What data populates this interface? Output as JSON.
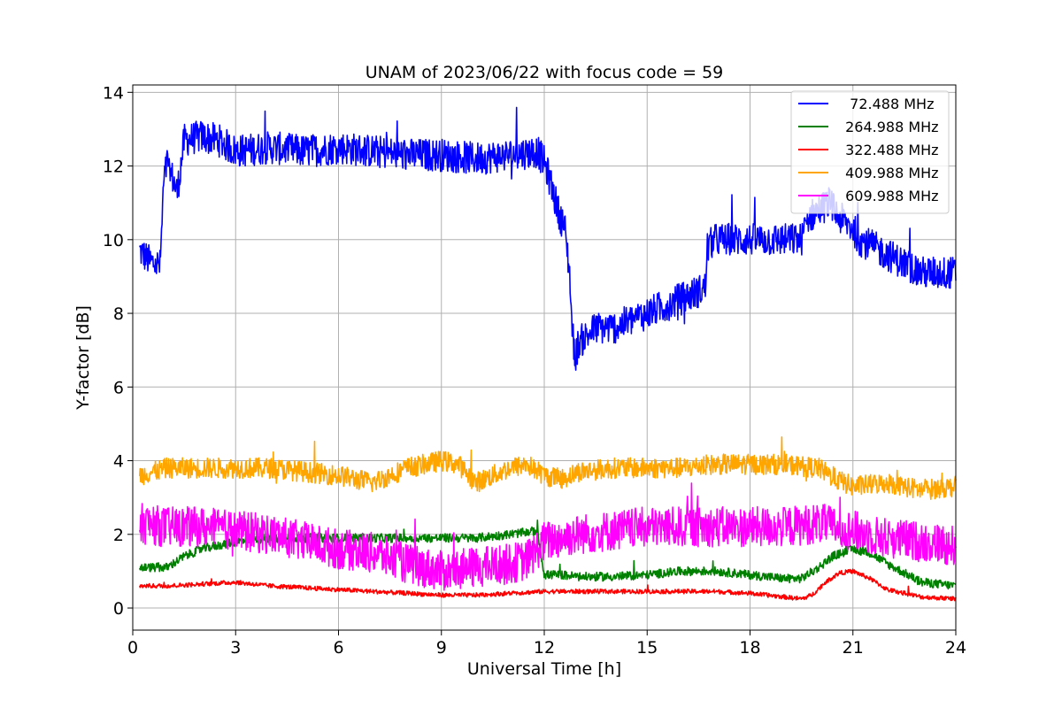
{
  "chart_data": {
    "type": "line",
    "title": "UNAM of 2023/06/22 with focus code = 59",
    "xlabel": "Universal Time [h]",
    "ylabel": "Y-factor [dB]",
    "xlim": [
      0,
      24
    ],
    "ylim": [
      -0.6,
      14.2
    ],
    "xticks": [
      0,
      3,
      6,
      9,
      12,
      15,
      18,
      21,
      24
    ],
    "xtick_labels": [
      "0",
      "3",
      "6",
      "9",
      "12",
      "15",
      "18",
      "21",
      "24"
    ],
    "yticks": [
      0,
      2,
      4,
      6,
      8,
      10,
      12,
      14
    ],
    "ytick_labels": [
      "0",
      "2",
      "4",
      "6",
      "8",
      "10",
      "12",
      "14"
    ],
    "grid": true,
    "legend_position": "top-right",
    "series": [
      {
        "name": "  72.488 MHz",
        "color": "#0000ff",
        "noise": 0.45,
        "x": [
          0.2,
          0.5,
          0.8,
          0.9,
          1.0,
          1.3,
          1.5,
          2.0,
          2.5,
          3.0,
          4.0,
          5.0,
          6.0,
          7.0,
          8.0,
          9.0,
          10.0,
          11.0,
          11.8,
          12.0,
          12.2,
          12.4,
          12.6,
          12.75,
          12.8,
          12.9,
          13.0,
          13.5,
          14.0,
          15.0,
          16.0,
          16.5,
          16.7,
          16.75,
          17.0,
          18.0,
          19.0,
          19.5,
          19.7,
          20.0,
          20.3,
          20.6,
          21.0,
          21.2,
          22.0,
          23.0,
          24.0
        ],
        "y": [
          9.7,
          9.4,
          9.3,
          11.5,
          12.1,
          11.3,
          12.7,
          12.8,
          12.7,
          12.4,
          12.5,
          12.4,
          12.5,
          12.4,
          12.3,
          12.3,
          12.2,
          12.3,
          12.4,
          12.1,
          11.5,
          10.8,
          10.3,
          9.0,
          7.7,
          6.8,
          7.2,
          7.6,
          7.6,
          8.0,
          8.4,
          8.6,
          8.7,
          9.8,
          10.0,
          10.0,
          10.0,
          10.0,
          10.6,
          10.8,
          11.0,
          10.6,
          10.3,
          10.0,
          9.6,
          9.1,
          9.1
        ]
      },
      {
        "name": " 264.988 MHz",
        "color": "#008000",
        "noise": 0.12,
        "x": [
          0.2,
          1.0,
          1.5,
          2.0,
          3.0,
          4.0,
          5.0,
          6.0,
          7.0,
          8.0,
          9.0,
          10.0,
          11.0,
          11.8,
          12.0,
          12.5,
          13.0,
          14.0,
          15.0,
          16.0,
          17.0,
          18.0,
          19.0,
          19.5,
          20.0,
          20.4,
          21.0,
          21.5,
          22.0,
          23.0,
          24.0
        ],
        "y": [
          1.1,
          1.1,
          1.4,
          1.6,
          1.8,
          1.9,
          1.9,
          1.9,
          1.9,
          1.9,
          1.9,
          1.9,
          2.0,
          2.1,
          0.9,
          0.9,
          0.85,
          0.85,
          0.9,
          1.0,
          1.0,
          0.9,
          0.8,
          0.8,
          1.1,
          1.4,
          1.6,
          1.5,
          1.2,
          0.7,
          0.6
        ]
      },
      {
        "name": " 322.488 MHz",
        "color": "#ff0000",
        "noise": 0.06,
        "x": [
          0.2,
          1.0,
          2.0,
          3.0,
          4.0,
          5.0,
          6.0,
          7.0,
          8.0,
          9.0,
          10.0,
          11.0,
          12.0,
          13.0,
          14.0,
          15.0,
          16.0,
          17.0,
          18.0,
          19.0,
          19.5,
          19.8,
          20.2,
          20.6,
          21.0,
          21.5,
          22.0,
          23.0,
          24.0
        ],
        "y": [
          0.6,
          0.6,
          0.65,
          0.7,
          0.6,
          0.55,
          0.5,
          0.45,
          0.4,
          0.35,
          0.35,
          0.4,
          0.45,
          0.45,
          0.45,
          0.45,
          0.45,
          0.45,
          0.4,
          0.3,
          0.25,
          0.35,
          0.7,
          0.95,
          1.0,
          0.8,
          0.5,
          0.3,
          0.25
        ]
      },
      {
        "name": " 409.988 MHz",
        "color": "#ffa500",
        "noise": 0.28,
        "x": [
          0.2,
          1.0,
          2.0,
          3.0,
          4.0,
          5.0,
          6.0,
          7.0,
          7.5,
          8.0,
          9.0,
          9.5,
          10.0,
          10.5,
          11.0,
          11.5,
          12.0,
          12.5,
          13.0,
          14.0,
          15.0,
          16.0,
          17.0,
          18.0,
          19.0,
          20.0,
          20.5,
          21.0,
          22.0,
          23.0,
          24.0
        ],
        "y": [
          3.6,
          3.8,
          3.8,
          3.8,
          3.8,
          3.7,
          3.6,
          3.4,
          3.6,
          3.8,
          4.0,
          3.9,
          3.4,
          3.6,
          3.8,
          3.9,
          3.6,
          3.5,
          3.7,
          3.8,
          3.8,
          3.8,
          3.9,
          3.9,
          3.9,
          3.8,
          3.5,
          3.3,
          3.4,
          3.2,
          3.3
        ]
      },
      {
        "name": " 609.988 MHz",
        "color": "#ff00ff",
        "noise": 0.55,
        "x": [
          0.2,
          1.0,
          2.0,
          3.0,
          4.0,
          5.0,
          6.0,
          7.0,
          8.0,
          9.0,
          10.0,
          11.0,
          11.5,
          12.0,
          13.0,
          14.0,
          15.0,
          16.0,
          17.0,
          18.0,
          19.0,
          20.0,
          20.5,
          21.0,
          22.0,
          23.0,
          24.0
        ],
        "y": [
          2.3,
          2.2,
          2.2,
          2.1,
          2.0,
          1.8,
          1.6,
          1.5,
          1.2,
          1.0,
          1.1,
          1.2,
          1.3,
          1.8,
          2.0,
          2.1,
          2.2,
          2.2,
          2.2,
          2.2,
          2.2,
          2.3,
          2.2,
          2.1,
          1.9,
          1.8,
          1.7
        ]
      }
    ]
  }
}
